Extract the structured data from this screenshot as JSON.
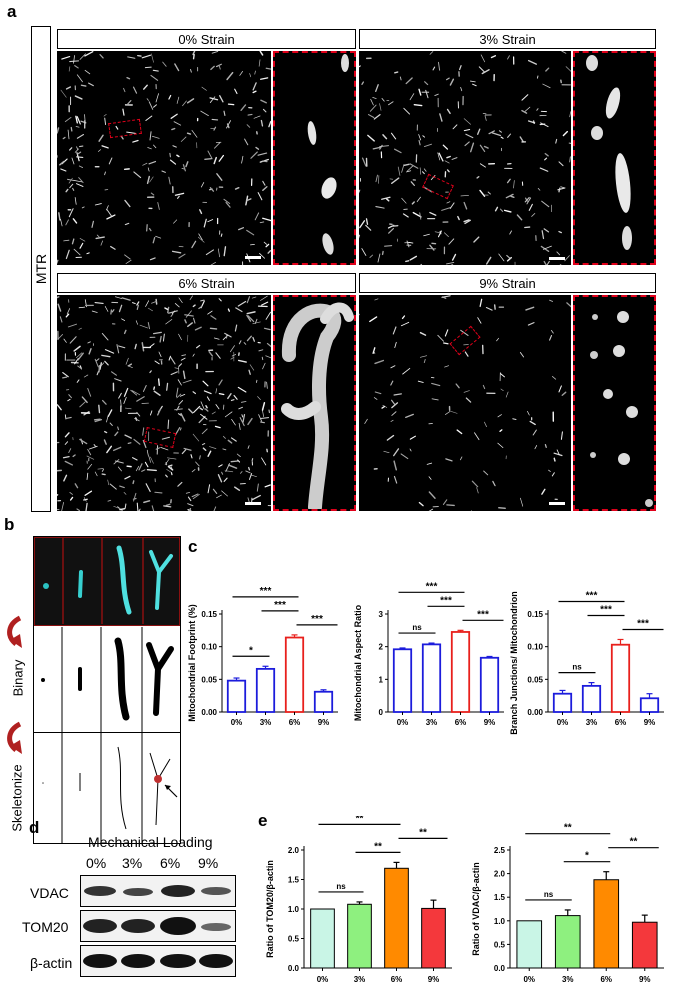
{
  "panel_labels": {
    "a": "a",
    "b": "b",
    "c": "c",
    "d": "d",
    "e": "e"
  },
  "panel_a": {
    "row_label": "MTR",
    "titles": [
      "0% Strain",
      "3% Strain",
      "6% Strain",
      "9% Strain"
    ]
  },
  "panel_b": {
    "row_labels": [
      "Binary",
      "Skeletonize"
    ]
  },
  "panel_d": {
    "title": "Mechanical Loading",
    "lanes": [
      "0%",
      "3%",
      "6%",
      "9%"
    ],
    "bands": [
      "VDAC",
      "TOM20",
      "β-actin"
    ]
  },
  "colors": {
    "blue": "#1c1cdc",
    "red": "#e8201c",
    "teal": "#c9f5e6",
    "green": "#8ef07f",
    "orange": "#ff8a00",
    "bright_red": "#f4383c",
    "inset_border": "#e0001a"
  },
  "chart_data": [
    {
      "type": "bar",
      "panel": "c",
      "ylabel": "Mitochondrial Footprint (%)",
      "categories": [
        "0%",
        "3%",
        "6%",
        "9%"
      ],
      "values": [
        0.048,
        0.066,
        0.114,
        0.031
      ],
      "errors": [
        0.004,
        0.004,
        0.004,
        0.003
      ],
      "yticks": [
        "0.00",
        "0.05",
        "0.10",
        "0.15"
      ],
      "ylim": [
        0,
        0.15
      ],
      "bar_colors": [
        "blue",
        "blue",
        "red",
        "blue"
      ],
      "annotations": [
        {
          "from": 0,
          "to": 1,
          "text": "*"
        },
        {
          "from": 2,
          "to": 3,
          "text": "***"
        },
        {
          "from": 1,
          "to": 2,
          "text": "***"
        },
        {
          "from": 0,
          "to": 2,
          "text": "***"
        }
      ]
    },
    {
      "type": "bar",
      "panel": "c",
      "ylabel": "Mitochondrial Aspect Ratio",
      "categories": [
        "0%",
        "3%",
        "6%",
        "9%"
      ],
      "values": [
        1.92,
        2.07,
        2.45,
        1.66
      ],
      "errors": [
        0.04,
        0.04,
        0.05,
        0.04
      ],
      "yticks": [
        "0",
        "1",
        "2",
        "3"
      ],
      "ylim": [
        0,
        3
      ],
      "bar_colors": [
        "blue",
        "blue",
        "red",
        "blue"
      ],
      "annotations": [
        {
          "from": 0,
          "to": 1,
          "text": "ns"
        },
        {
          "from": 2,
          "to": 3,
          "text": "***"
        },
        {
          "from": 1,
          "to": 2,
          "text": "***"
        },
        {
          "from": 0,
          "to": 2,
          "text": "***"
        }
      ]
    },
    {
      "type": "bar",
      "panel": "c",
      "ylabel": "Branch Junctions/ Mitochondrion",
      "categories": [
        "0%",
        "3%",
        "6%",
        "9%"
      ],
      "values": [
        0.028,
        0.04,
        0.103,
        0.021
      ],
      "errors": [
        0.005,
        0.005,
        0.008,
        0.007
      ],
      "yticks": [
        "0.00",
        "0.05",
        "0.10",
        "0.15"
      ],
      "ylim": [
        0,
        0.15
      ],
      "bar_colors": [
        "blue",
        "blue",
        "red",
        "blue"
      ],
      "annotations": [
        {
          "from": 0,
          "to": 1,
          "text": "ns"
        },
        {
          "from": 2,
          "to": 3,
          "text": "***"
        },
        {
          "from": 1,
          "to": 2,
          "text": "***"
        },
        {
          "from": 0,
          "to": 2,
          "text": "***"
        }
      ]
    },
    {
      "type": "bar",
      "panel": "e",
      "ylabel": "Ratio of TOM20/β-actin",
      "categories": [
        "0%",
        "3%",
        "6%",
        "9%"
      ],
      "values": [
        1.0,
        1.08,
        1.69,
        1.01
      ],
      "errors": [
        0.0,
        0.04,
        0.1,
        0.14
      ],
      "yticks": [
        "0.0",
        "0.5",
        "1.0",
        "1.5",
        "2.0"
      ],
      "ylim": [
        0,
        2.0
      ],
      "bar_colors": [
        "teal",
        "green",
        "orange",
        "bright_red"
      ],
      "annotations": [
        {
          "from": 0,
          "to": 1,
          "text": "ns"
        },
        {
          "from": 1,
          "to": 2,
          "text": "**"
        },
        {
          "from": 0,
          "to": 2,
          "text": "**"
        },
        {
          "from": 2,
          "to": 3,
          "text": "**"
        }
      ]
    },
    {
      "type": "bar",
      "panel": "e",
      "ylabel": "Ratio of VDAC/β-actin",
      "categories": [
        "0%",
        "3%",
        "6%",
        "9%"
      ],
      "values": [
        1.0,
        1.11,
        1.87,
        0.97
      ],
      "errors": [
        0.0,
        0.12,
        0.17,
        0.15
      ],
      "yticks": [
        "0.0",
        "0.5",
        "1.0",
        "1.5",
        "2.0",
        "2.5"
      ],
      "ylim": [
        0,
        2.5
      ],
      "bar_colors": [
        "teal",
        "green",
        "orange",
        "bright_red"
      ],
      "annotations": [
        {
          "from": 0,
          "to": 1,
          "text": "ns"
        },
        {
          "from": 1,
          "to": 2,
          "text": "*"
        },
        {
          "from": 0,
          "to": 2,
          "text": "**"
        },
        {
          "from": 2,
          "to": 3,
          "text": "**"
        }
      ]
    }
  ]
}
